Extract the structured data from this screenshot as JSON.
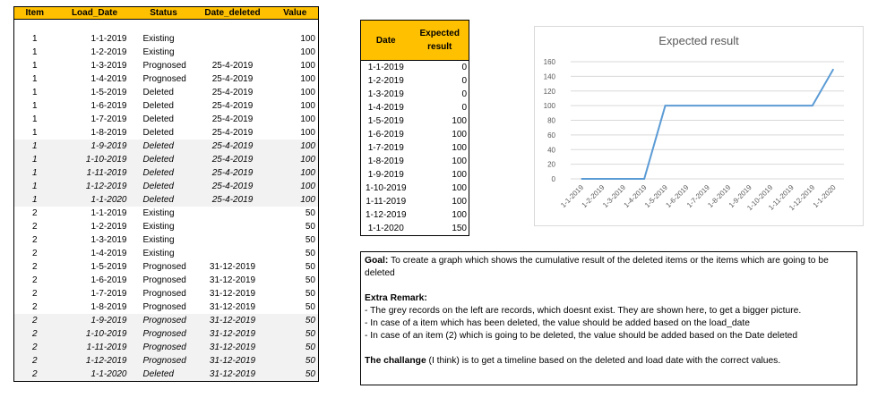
{
  "left_table": {
    "headers": [
      "Item",
      "Load_Date",
      "Status",
      "Date_deleted",
      "Value"
    ],
    "rows": [
      {
        "item": "1",
        "load_date": "1-1-2019",
        "status": "Existing",
        "date_deleted": "",
        "value": "100",
        "ghost": false
      },
      {
        "item": "1",
        "load_date": "1-2-2019",
        "status": "Existing",
        "date_deleted": "",
        "value": "100",
        "ghost": false
      },
      {
        "item": "1",
        "load_date": "1-3-2019",
        "status": "Prognosed",
        "date_deleted": "25-4-2019",
        "value": "100",
        "ghost": false
      },
      {
        "item": "1",
        "load_date": "1-4-2019",
        "status": "Prognosed",
        "date_deleted": "25-4-2019",
        "value": "100",
        "ghost": false
      },
      {
        "item": "1",
        "load_date": "1-5-2019",
        "status": "Deleted",
        "date_deleted": "25-4-2019",
        "value": "100",
        "ghost": false
      },
      {
        "item": "1",
        "load_date": "1-6-2019",
        "status": "Deleted",
        "date_deleted": "25-4-2019",
        "value": "100",
        "ghost": false
      },
      {
        "item": "1",
        "load_date": "1-7-2019",
        "status": "Deleted",
        "date_deleted": "25-4-2019",
        "value": "100",
        "ghost": false
      },
      {
        "item": "1",
        "load_date": "1-8-2019",
        "status": "Deleted",
        "date_deleted": "25-4-2019",
        "value": "100",
        "ghost": false
      },
      {
        "item": "1",
        "load_date": "1-9-2019",
        "status": "Deleted",
        "date_deleted": "25-4-2019",
        "value": "100",
        "ghost": true
      },
      {
        "item": "1",
        "load_date": "1-10-2019",
        "status": "Deleted",
        "date_deleted": "25-4-2019",
        "value": "100",
        "ghost": true
      },
      {
        "item": "1",
        "load_date": "1-11-2019",
        "status": "Deleted",
        "date_deleted": "25-4-2019",
        "value": "100",
        "ghost": true
      },
      {
        "item": "1",
        "load_date": "1-12-2019",
        "status": "Deleted",
        "date_deleted": "25-4-2019",
        "value": "100",
        "ghost": true
      },
      {
        "item": "1",
        "load_date": "1-1-2020",
        "status": "Deleted",
        "date_deleted": "25-4-2019",
        "value": "100",
        "ghost": true
      },
      {
        "item": "2",
        "load_date": "1-1-2019",
        "status": "Existing",
        "date_deleted": "",
        "value": "50",
        "ghost": false
      },
      {
        "item": "2",
        "load_date": "1-2-2019",
        "status": "Existing",
        "date_deleted": "",
        "value": "50",
        "ghost": false
      },
      {
        "item": "2",
        "load_date": "1-3-2019",
        "status": "Existing",
        "date_deleted": "",
        "value": "50",
        "ghost": false
      },
      {
        "item": "2",
        "load_date": "1-4-2019",
        "status": "Existing",
        "date_deleted": "",
        "value": "50",
        "ghost": false
      },
      {
        "item": "2",
        "load_date": "1-5-2019",
        "status": "Prognosed",
        "date_deleted": "31-12-2019",
        "value": "50",
        "ghost": false
      },
      {
        "item": "2",
        "load_date": "1-6-2019",
        "status": "Prognosed",
        "date_deleted": "31-12-2019",
        "value": "50",
        "ghost": false
      },
      {
        "item": "2",
        "load_date": "1-7-2019",
        "status": "Prognosed",
        "date_deleted": "31-12-2019",
        "value": "50",
        "ghost": false
      },
      {
        "item": "2",
        "load_date": "1-8-2019",
        "status": "Prognosed",
        "date_deleted": "31-12-2019",
        "value": "50",
        "ghost": false
      },
      {
        "item": "2",
        "load_date": "1-9-2019",
        "status": "Prognosed",
        "date_deleted": "31-12-2019",
        "value": "50",
        "ghost": true
      },
      {
        "item": "2",
        "load_date": "1-10-2019",
        "status": "Prognosed",
        "date_deleted": "31-12-2019",
        "value": "50",
        "ghost": true
      },
      {
        "item": "2",
        "load_date": "1-11-2019",
        "status": "Prognosed",
        "date_deleted": "31-12-2019",
        "value": "50",
        "ghost": true
      },
      {
        "item": "2",
        "load_date": "1-12-2019",
        "status": "Prognosed",
        "date_deleted": "31-12-2019",
        "value": "50",
        "ghost": true
      },
      {
        "item": "2",
        "load_date": "1-1-2020",
        "status": "Deleted",
        "date_deleted": "31-12-2019",
        "value": "50",
        "ghost": true
      }
    ]
  },
  "mid_table": {
    "header_date": "Date",
    "header_result": "Expected result",
    "rows": [
      {
        "date": "1-1-2019",
        "value": "0"
      },
      {
        "date": "1-2-2019",
        "value": "0"
      },
      {
        "date": "1-3-2019",
        "value": "0"
      },
      {
        "date": "1-4-2019",
        "value": "0"
      },
      {
        "date": "1-5-2019",
        "value": "100"
      },
      {
        "date": "1-6-2019",
        "value": "100"
      },
      {
        "date": "1-7-2019",
        "value": "100"
      },
      {
        "date": "1-8-2019",
        "value": "100"
      },
      {
        "date": "1-9-2019",
        "value": "100"
      },
      {
        "date": "1-10-2019",
        "value": "100"
      },
      {
        "date": "1-11-2019",
        "value": "100"
      },
      {
        "date": "1-12-2019",
        "value": "100"
      },
      {
        "date": "1-1-2020",
        "value": "150"
      }
    ]
  },
  "chart_data": {
    "type": "line",
    "title": "Expected result",
    "categories": [
      "1-1-2019",
      "1-2-2019",
      "1-3-2019",
      "1-4-2019",
      "1-5-2019",
      "1-6-2019",
      "1-7-2019",
      "1-8-2019",
      "1-9-2019",
      "1-10-2019",
      "1-11-2019",
      "1-12-2019",
      "1-1-2020"
    ],
    "values": [
      0,
      0,
      0,
      0,
      100,
      100,
      100,
      100,
      100,
      100,
      100,
      100,
      150
    ],
    "ylim": [
      0,
      160
    ],
    "yticks": [
      0,
      20,
      40,
      60,
      80,
      100,
      120,
      140,
      160
    ],
    "grid": true,
    "line_color": "#5b9bd5"
  },
  "notes": {
    "goal_label": "Goal:",
    "goal_text": " To create a graph which shows the cumulative result of the deleted items or the items which are going to be deleted",
    "remark_label": "Extra Remark:",
    "remarks": [
      " - The grey records on the left are records, which doesnt exist. They are shown here, to get a bigger picture.",
      " - In case of a item which has been deleted, the value should be added based on the load_date",
      " - In case of an item (2) which is going to be deleted, the value should be added based on the Date deleted"
    ],
    "challenge_label": "The challange",
    "challenge_text": " (I think) is to get a timeline based on the deleted and load date with the correct values."
  }
}
